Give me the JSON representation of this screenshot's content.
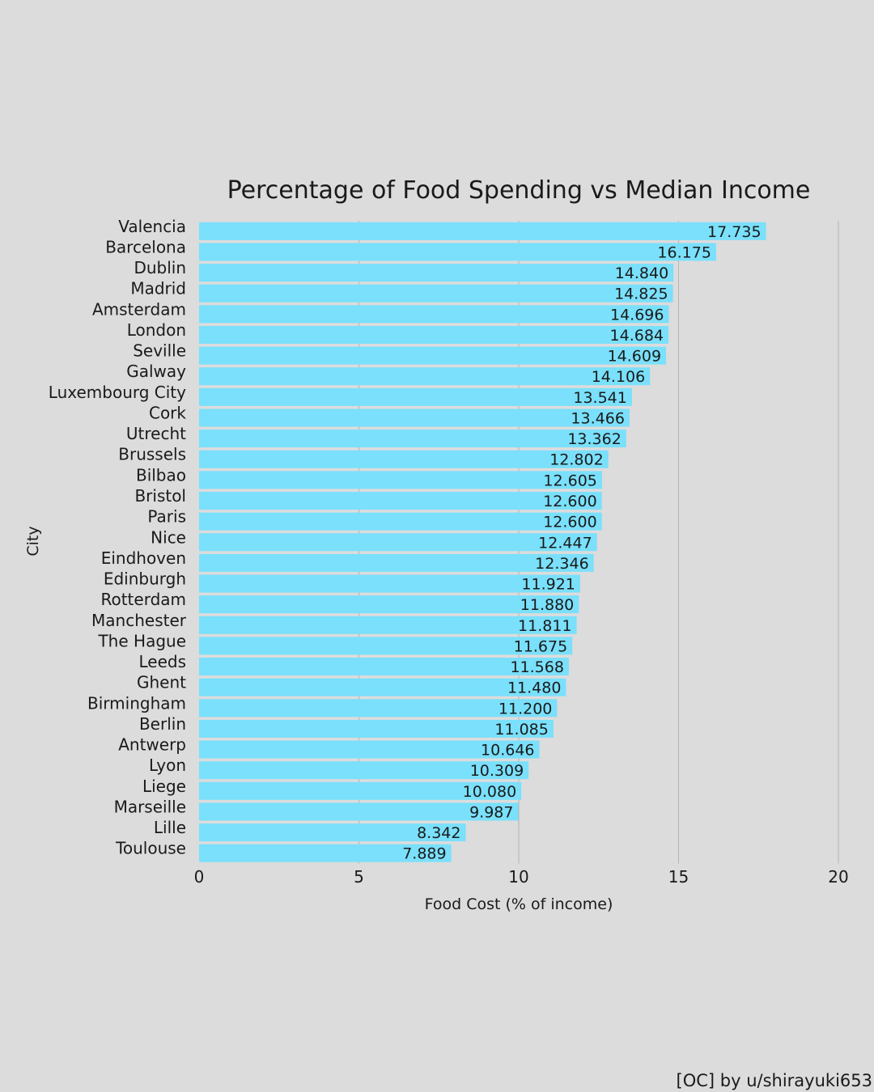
{
  "chart_data": {
    "type": "bar",
    "orientation": "horizontal",
    "title": "Percentage of Food Spending vs Median Income",
    "xlabel": "Food Cost (% of income)",
    "ylabel": "City",
    "xlim": [
      0,
      20
    ],
    "xticks": [
      "0",
      "5",
      "10",
      "15",
      "20"
    ],
    "xtick_values": [
      0,
      5,
      10,
      15,
      20
    ],
    "grid": true,
    "bar_color": "#7ae0fb",
    "categories": [
      "Valencia",
      "Barcelona",
      "Dublin",
      "Madrid",
      "Amsterdam",
      "London",
      "Seville",
      "Galway",
      "Luxembourg City",
      "Cork",
      "Utrecht",
      "Brussels",
      "Bilbao",
      "Bristol",
      "Paris",
      "Nice",
      "Eindhoven",
      "Edinburgh",
      "Rotterdam",
      "Manchester",
      "The Hague",
      "Leeds",
      "Ghent",
      "Birmingham",
      "Berlin",
      "Antwerp",
      "Lyon",
      "Liege",
      "Marseille",
      "Lille",
      "Toulouse"
    ],
    "values": [
      17.735,
      16.175,
      14.84,
      14.825,
      14.696,
      14.684,
      14.609,
      14.106,
      13.541,
      13.466,
      13.362,
      12.802,
      12.605,
      12.6,
      12.6,
      12.447,
      12.346,
      11.921,
      11.88,
      11.811,
      11.675,
      11.568,
      11.48,
      11.2,
      11.085,
      10.646,
      10.309,
      10.08,
      9.987,
      8.342,
      7.889
    ],
    "value_labels": [
      "17.735",
      "16.175",
      "14.840",
      "14.825",
      "14.696",
      "14.684",
      "14.609",
      "14.106",
      "13.541",
      "13.466",
      "13.362",
      "12.802",
      "12.605",
      "12.600",
      "12.600",
      "12.447",
      "12.346",
      "11.921",
      "11.880",
      "11.811",
      "11.675",
      "11.568",
      "11.480",
      "11.200",
      "11.085",
      "10.646",
      "10.309",
      "10.080",
      "9.987",
      "8.342",
      "7.889"
    ]
  },
  "credit": "[OC] by u/shirayuki653",
  "colors": {
    "background": "#dcdcdc",
    "bar": "#7ae0fb",
    "grid": "#b4b4b4",
    "text": "#1a1a1a"
  }
}
